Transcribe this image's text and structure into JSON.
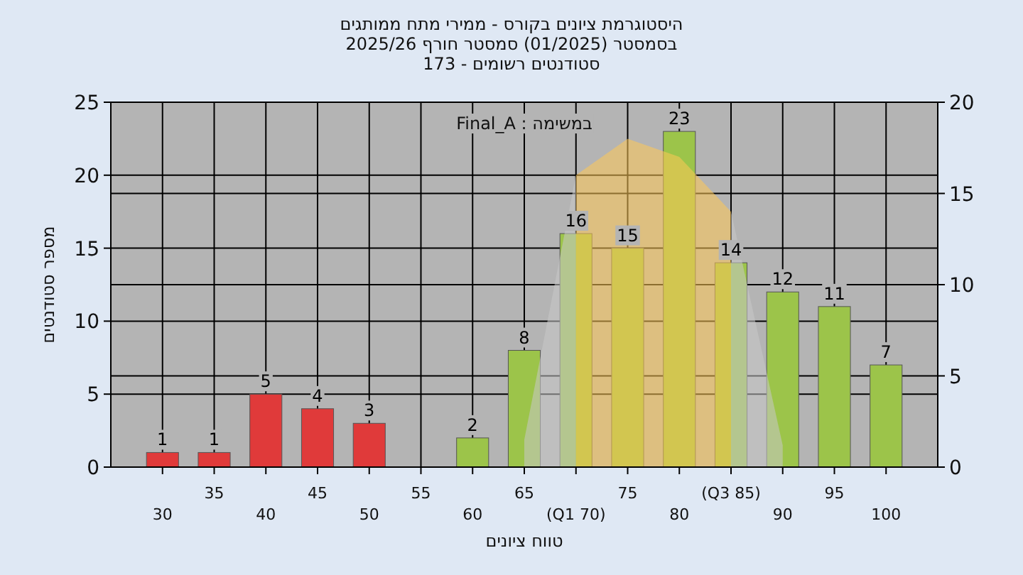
{
  "chart_data": {
    "type": "bar",
    "title": "היסטוגרמת ציונים בקורס - ממירי מתח ממותגים",
    "subtitle": "בסמסטר (01/2025) סמסטר חורף 2025/26\nסטודנטים רשומים - 173",
    "xlabel": "טווח ציונים",
    "ylabel": "מספר סטודנטים",
    "categories": [
      "30",
      "35",
      "40",
      "45",
      "50",
      "55",
      "60",
      "65",
      "(Q1 70)",
      "75",
      "80",
      "(Q3 85)",
      "90",
      "95",
      "100"
    ],
    "ylim": [
      0,
      25
    ],
    "yticks": [
      0,
      5,
      10,
      15,
      20,
      25
    ],
    "y2lim": [
      0,
      20
    ],
    "y2ticks": [
      0,
      5,
      10,
      15,
      20
    ],
    "grid": true,
    "annotations": [
      "במשימה : Final_A"
    ],
    "series": [
      {
        "type": "area",
        "axis": "y2",
        "color": "#c8c8c8",
        "values": [
          null,
          null,
          null,
          null,
          null,
          null,
          null,
          1.5,
          16,
          null,
          null,
          14,
          1.2,
          null,
          null
        ]
      },
      {
        "type": "area",
        "axis": "y2",
        "color": "#ffc955",
        "values": [
          null,
          null,
          null,
          null,
          null,
          null,
          null,
          null,
          16,
          18,
          17,
          14,
          null,
          null,
          null
        ]
      },
      {
        "colors": [
          "#e03a3a",
          "#e03a3a",
          "#e03a3a",
          "#e03a3a",
          "#e03a3a",
          "#e03a3a",
          "#9cc44a",
          "#9cc44a",
          "#9cc44a",
          "#9cc44a",
          "#9cc44a",
          "#9cc44a",
          "#9cc44a",
          "#9cc44a",
          "#9cc44a"
        ],
        "values": [
          1,
          1,
          5,
          4,
          3,
          0,
          2,
          8,
          16,
          15,
          23,
          14,
          12,
          11,
          7
        ],
        "value_labels": [
          "1",
          "1",
          "5",
          "4",
          "3",
          null,
          "2",
          "8",
          "16",
          "15",
          "23",
          "14",
          "12",
          "11",
          "7"
        ]
      }
    ]
  }
}
